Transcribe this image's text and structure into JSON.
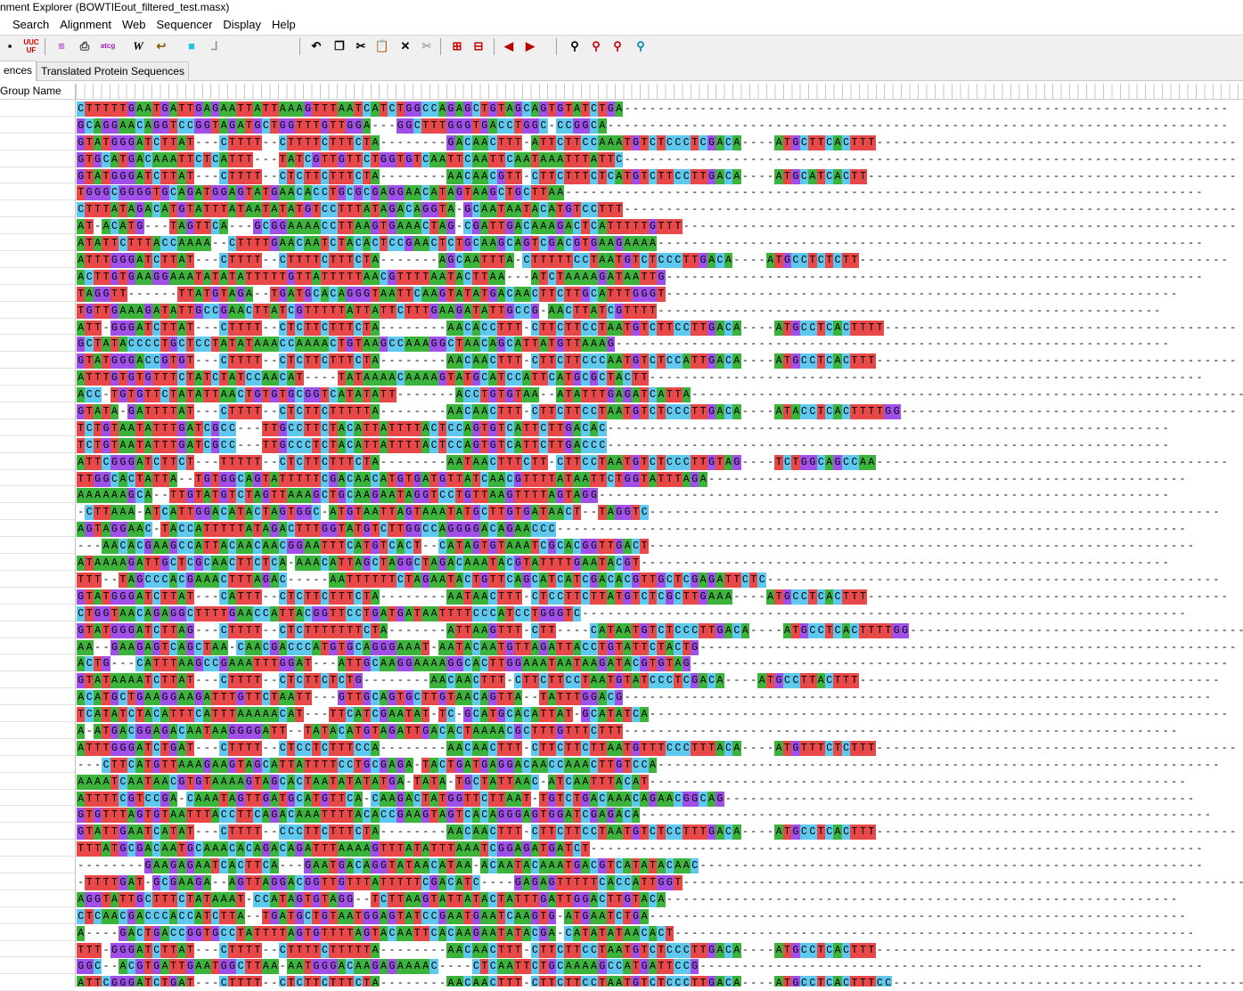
{
  "window": {
    "title": "nment Explorer (BOWTIEout_filtered_test.masx)"
  },
  "menu": [
    "Search",
    "Alignment",
    "Web",
    "Sequencer",
    "Display",
    "Help"
  ],
  "toolbar_icons": [
    "save-icon",
    "uuc-icon",
    "list-icon",
    "print-icon",
    "atcg-icon",
    "w-icon",
    "reverse-icon",
    "color-icon",
    "tree-icon",
    "undo-icon",
    "copy-icon",
    "cut-icon",
    "paste-icon",
    "delete-icon",
    "disabled-cut-icon",
    "insert-icon",
    "export-icon",
    "prev-icon",
    "next-icon",
    "find-icon",
    "find-prev-icon",
    "find-next-icon",
    "find-replace-icon"
  ],
  "tabs": {
    "nucleotide": "ences",
    "protein": "Translated Protein Sequences"
  },
  "grid": {
    "group_header": "Group Name"
  },
  "colors": {
    "A": "#3cb43c",
    "C": "#5ec8ee",
    "G": "#a050e8",
    "T": "#e84848"
  },
  "sequences": [
    "CTTTTTGAATGATTGAGAATTATTAAAGTTTAATCATCTGGCCAGAGCTGTAGCAGTGTATCTGA------------------------------------------------------------------------",
    "GCAGGAACAGGTCCGGTAGATGCTGGTTTGTTGGA---GGCTTTGGGTGACCTGGC-CCGGCA--------------------------------------------------------------------------",
    "GTATGGGATCTTAT---CTTTT--CTTTTCTTTCTA--------GACAACTTT-ATTCTTCCAAATGTCTCCCTCGACA----ATGCTTCACTTT-------------------------------------------",
    "GTGCATGACAAATTCTCATTT---TATCGTTGTTCTGGTGTCAATTCAATTCAATAAATTTATTC-------------------------------------------------------------------------",
    "GTATGGGATCTTAT---CTTTT--CTCTTCTTTCTA--------AACAACGTT-CTTCTTTCTCATGTCTTCCTTGACA----ATGCATCACTT--------------------------------------------",
    "TGGGCGGGGTGCAGATGGAGTATGAACACCTGCGCGAGGAACATAGTAAGCTGCTTAA----------------------------------------------------------------------------",
    "CTTTATAGACATGTATTTATAATATATGTCCTTTATAGACAGGTA-GCAATAATACATGTCCTTT-------------------------------------------------------------------------",
    "AT-ACATG---TAGTTCA---GCGGAAAACCTTAAGTGAAACTAG-CGATTGACAAAGACTCATTTTTGTTT------------------------------------------------------------------",
    "ATATTCTTTACCAAAA--CTTTTGAACAATCTACACTCCGAACTCTGCAAGCAGTCGACGTGAAGAAAA-----------------------------------------------------------------",
    "ATTTGGGATCTTAT---CTTTT--CTTTTCTTTCTA-------AGCAATTTA-CTTTTTCCTAATGTCTCCCTTGACA----ATGCCTCTCTT--------------------------------------------",
    "ACTTGTGAAGGAAATATATATTTTTGTTATTTTTAACGTTTTAATACTTAA---ATCTAAAAGATAATTG----------------------------------------------------------------",
    "TAGGTT------TTATGTAGA--TGATGCACAGGGTAATTCAAGTATATGACAACTTCTTGCATTTGGGT-------------------------------------------------------------",
    "TGTTGAAAGATATTGCCGAACTTATCGTTTTTATTATTCTTTGAAGATATTGCCG-AACTTATCGTTTT------------------------------------------------------------",
    "ATT-GGGATCTTAT---CTTTT--CTCTTCTTTCTA--------AACACCTTT-CTTCTTCCTAATGTCTTCCTTGACA----ATGCCTCACTTTT------------------------------------------",
    "GCTATACCCCTGCTCCTATATAAACCAAAACTGTAAGCCAAAGGCTAACAGCATTATGTTAAAG------------------------------------------------------------------",
    "GTATGGGACCGTGT---CTTTT--CTCTTCTTTCTA--------AACAACTTT-CTTCTTCCCAATGTCTCCATTGACA----ATGCCTCACTTT-------------------------------------------",
    "ATTTGTGTGTTTCTATCTATCCAACAT----TATAAAACAAAAGTATGCATCCATTCATGCGCTACTT------------------------------------------------------------------",
    "ACC-TGTGTTCTATATTAACTGTGTGCGGTCATATATT-------ACCTGTGTAA--ATATTTGAGATCATTA------------------------------------------------------------------",
    "GTATA-GATTTTAT---CTTTT--CTCTTCTTTTTA--------AACAACTTT-CTTCTTCCTAATGTCTCCCTTGACA----ATACCTCACTTTTGG----------------------------------------",
    "TCTGTAATATTTGATCGCC---TTGCCTTCTACATTATTTTACTCCAGTGTCATTCTTGACAC-------------------------------------------------------------------",
    "TCTGTAATATTTGATCGCC---TTGCCCTCTACATTATTTTACTCCAGTGTCATTCTTGACCC-------------------------------------------------------------------",
    "ATTCGGGATCTTCT---TTTTT--CTCTTCTTTCTA--------AATAACTTTCTT-CTTCCTAATGTCTCCCTTGTAG----TCTGGCAGCCAA------------------------------------------",
    "TTGGCACTATTA--TGTGGCAGTATTTTTCGACAACATGTGATGTTATCAACGTTTTATAATTCTGGTATTTAGA---------------------------------------------------------",
    "AAAAAAGCA--TTGTATGTCTAGTTAAAGCTGCAAGAATAGGTCCTGTTAAGTTTTAGTAGG--------------------------------------------------------------------",
    "-CTTAAA-ATCATTGGACATACTAGTGGC-ATGTAATTAGTAAATATGCTTGTGATAACT--TAGGTC--------------------------------------------------------------------",
    "AGTAGGAAC-TACCATTTTTATAGACTTTGGTATGTCTTGGCCAGGGGACAGAACCC---------------------------------------------------------------------------",
    "---AACACGAAGCCATTACAACAACGGAATTTCATGTCACT--CATAGTGTAAATCGCACGGTTGACT-----------------------------------------------------------------",
    "ATAAAAGATTGCTCGCAACTTCTCA-AAACATTAGCTAGGCTAGACAAATACGTATTTTGAATACGT---------------------------------------------------------------",
    "TTT--TAGCCCACGAAACTTTAGAC-----AATTTTTTCTAGAATACTGTTCAGCATCATCGACACGTTGCTCGAGATTCTC------------------------------------------------------",
    "GTATGGGATCTTAT---CATTT--CTCTTCTTTCTA--------AATAACTTT-CTCCTTCTTATGTCTCGCTTGAAA----ATGCCTCACTTT-------------------------------------------",
    "CTGGTAACAGAGGCTTTTGAACCATTACGGTTCCTGATGATAATTTTCCCATCCTGGGTC------------------------------------------------------------------------",
    "GTATGGGATCTTAG---CTTTT--CTCTTTTTTTCTA-------ATTAAGTTT-CTT----CATAATGTCTCCCTTGACA----ATGCCTCACTTTTGG----------------------------------------",
    "AA--GAAGAGTCAGCTAA-CAACGACCCATGTGCAGGGAAAT-AATACAATGTTAGATTACCTGTATTCTACTG----------------------------------------------------------------",
    "ACTG---CATTTAAGCCGAAATTTGGAT---ATTGCAAGGAAAAGGCACTTGGAAATAATAAGATACGTGTAG----------------------------------------------------------------",
    "GTATAAAATCTTAT---CTTTT--CTCTTCTCTG--------AACAACTTT-CTTCTTCCTAATGTATCCCTCGACA----ATGCCTTACTTT-------------------------------------------",
    "ACATGCTGAAGGAAGATTTGTTCTAATT---GTTGCAGTGCTTGTAACAGTTA--TATTTGGACG----------------------------------------------------------------------",
    "TCATATCTACATTTCATTTAAAAACAT---TTCATCGAATAT-TC-GCATGCACATTAT-GCATATCA---------------------------------------------------------------------",
    "A-ATGACGGAGACAATAAGGGGATT--TATACATGTAGATTGACACTAAAACGCTTTGTTTCTTT------------------------------------------------------------------",
    "ATTTGGGATCTGAT---CTTTT--CTCCTCTTTCCA--------AACAACTTT-CTTCTTCTTAATGTTTCCCTTTACA----ATGTTTCTCTTT-------------------------------------------",
    "---CTTCATGTTAAAGAAGTAGCATTATTTTCCTGCGAGA-TACTGATGAGGACAACCAAACTTGTCCA-------------------------------------------------------------------",
    "AAAATCAATAACGTGTAAAAGTAGCACTAATATATATGA-TATA-TGCTATTAAC-ATCAATTTACAT----------------------------------------------------------------",
    "ATTTTCGTCCGA-CAAATAGTTGATGCATGTTCA-CAAGACTATGGTTCTTAAT-TGTCTGACAAACAGAACGGCAG--------------------------------------------------------",
    "GTGTTTAGTGTAATTTACCTTCAGACAAATTTTACACCGAAGTAGTCACAGGGAGTGGATCGAGACA--------------------------------------------------------------------",
    "GTATTGAATCATAT---CTTTT--CCCTTCTTTCTA--------AACAACTTT-CTTCTTCCTAATGTCTCCTTTGACA----ATGCCTCACTTT-------------------------------------------",
    "TTTATGCGACAATGCAAACACAGACAGATTTAAAAGTTTATATTTAAATCGGAGATGATCT-------------------------------------------------------------------------",
    "--------GAAGAGAATCACTTCA---GAATGACAGGTATAACATAA-ACAATACAAATGACGTCATATACAAC------------------------------------------------------------",
    "-TTTTGAT-GCGAAGA--AGTTAGGACGGTTGTTTATTTTTCGACATC----GAGAGTTTTTCACCATTGGT-------------------------------------------------------------------",
    "AGGTATTGCTTTCTATAAAT-CCATAGTGTAGG--TCTTAAGTATTATACTATTTGATTGGACTTGTACA-------------------------------------------------------------",
    "CTCAACGACCCACCATCTTA--TGATGCTGTAATGGAGTATCCGAATGAATCAAGTG-ATGAATCTGA----------------------------------------------------------------",
    "A----GACTGACCGGTGCCTATTTTAGTGTTTTAGTACAATTCACAAGAATATACGA-CATATATAACACT--------------------------------------------------------------",
    "TTT-GGGATCTTAT---CTTTT--CTTTTCTTTTTA--------AACAACTTT-CTTCTTCCTAATGTCTCCCTTGACA----ATGCCTCACTTT-------------------------------------------",
    "GGC--ACGTGATTGAATGGCTTAA-AATGGGACAAGAGAAAAC----CTCAATTCTGCAAAAGCCATGATTCCG------------------------------------------------------------",
    "ATTCGGGATCTGAT---CTTTT--CTCTTCTTTCTA--------AACAACTTT-CTTCTTCCTAATGTCTCCCTTGACA----ATGCCTCACTTTCC-------------------------------------------"
  ]
}
